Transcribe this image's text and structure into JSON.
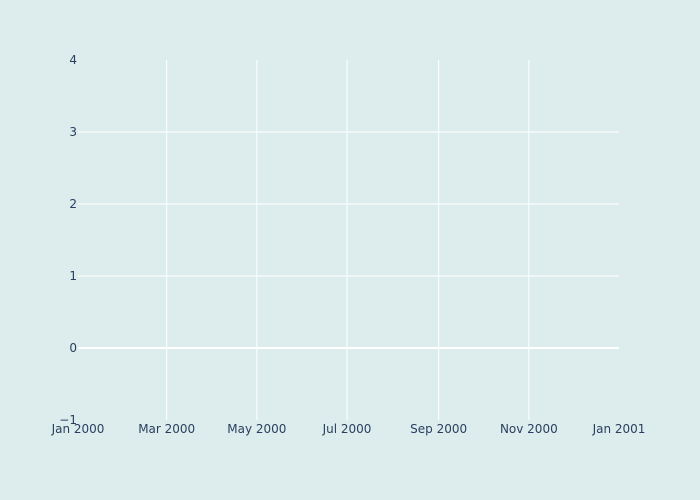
{
  "colors": {
    "background": "#ddeded",
    "grid": "#ffffff",
    "zeroline": "#ffffff",
    "tick_text": "#2a3f5f"
  },
  "chart_data": {
    "type": "line",
    "title": "",
    "xlabel": "",
    "ylabel": "",
    "x_axis_type": "date",
    "xlim": [
      "2000-01-01",
      "2001-01-01"
    ],
    "ylim": [
      -1,
      4
    ],
    "grid": true,
    "series": [],
    "x_ticks": [
      {
        "value": "2000-01-01",
        "label": "Jan 2000"
      },
      {
        "value": "2000-03-01",
        "label": "Mar 2000"
      },
      {
        "value": "2000-05-01",
        "label": "May 2000"
      },
      {
        "value": "2000-07-01",
        "label": "Jul 2000"
      },
      {
        "value": "2000-09-01",
        "label": "Sep 2000"
      },
      {
        "value": "2000-11-01",
        "label": "Nov 2000"
      },
      {
        "value": "2001-01-01",
        "label": "Jan 2001"
      }
    ],
    "y_ticks": [
      {
        "value": -1,
        "label": "−1"
      },
      {
        "value": 0,
        "label": "0"
      },
      {
        "value": 1,
        "label": "1"
      },
      {
        "value": 2,
        "label": "2"
      },
      {
        "value": 3,
        "label": "3"
      },
      {
        "value": 4,
        "label": "4"
      }
    ]
  }
}
